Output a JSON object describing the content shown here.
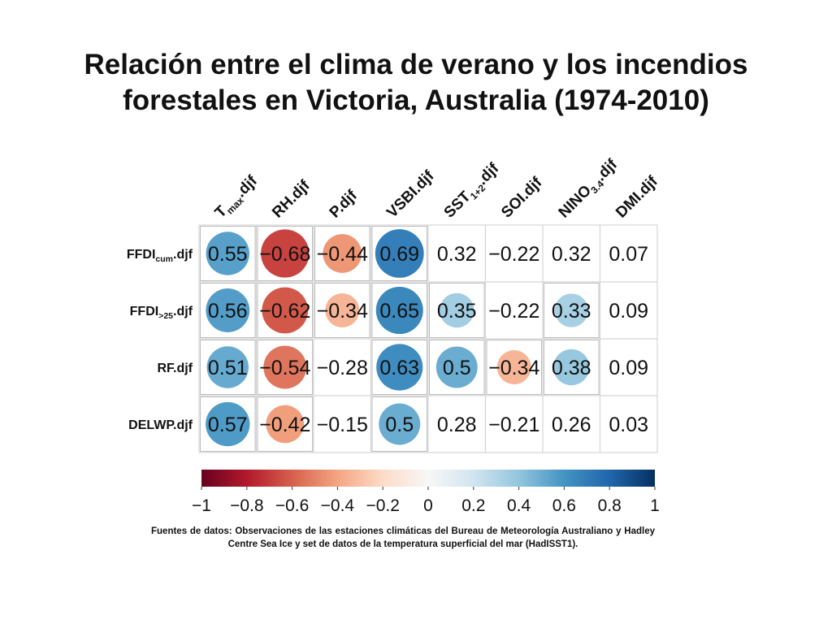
{
  "title_line1": "Relación entre el clima de verano y los incendios",
  "title_line2": "forestales en Victoria, Australia (1974-2010)",
  "footnote": "Fuentes de datos: Observaciones de las estaciones climáticas del Bureau de Meteorología Australiano y Hadley Centre Sea Ice y set de datos de la temperatura superficial del mar (HadISST1).",
  "chart_data": {
    "type": "heatmap",
    "columns": [
      {
        "label": "T",
        "sub": "max",
        "suffix": ".djf"
      },
      {
        "label": "RH.djf",
        "sub": "",
        "suffix": ""
      },
      {
        "label": "P.djf",
        "sub": "",
        "suffix": ""
      },
      {
        "label": "VSBI.djf",
        "sub": "",
        "suffix": ""
      },
      {
        "label": "SST",
        "sub": "1+2",
        "suffix": ".djf"
      },
      {
        "label": "SOI.djf",
        "sub": "",
        "suffix": ""
      },
      {
        "label": "NINO",
        "sub": "3.4",
        "suffix": ".djf"
      },
      {
        "label": "DMI.djf",
        "sub": "",
        "suffix": ""
      }
    ],
    "rows": [
      {
        "label": "FFDI",
        "sub": "cum",
        "suffix": ".djf"
      },
      {
        "label": "FFDI",
        "sub": ">25",
        "suffix": ".djf"
      },
      {
        "label": "RF.djf",
        "sub": "",
        "suffix": ""
      },
      {
        "label": "DELWP.djf",
        "sub": "",
        "suffix": ""
      }
    ],
    "values": [
      [
        0.55,
        -0.68,
        -0.44,
        0.69,
        0.32,
        -0.22,
        0.32,
        0.07
      ],
      [
        0.56,
        -0.62,
        -0.34,
        0.65,
        0.35,
        -0.22,
        0.33,
        0.09
      ],
      [
        0.51,
        -0.54,
        -0.28,
        0.63,
        0.5,
        -0.34,
        0.38,
        0.09
      ],
      [
        0.57,
        -0.42,
        -0.15,
        0.5,
        0.28,
        -0.21,
        0.26,
        0.03
      ]
    ],
    "value_labels": [
      [
        "0.55",
        "−0.68",
        "−0.44",
        "0.69",
        "0.32",
        "−0.22",
        "0.32",
        "0.07"
      ],
      [
        "0.56",
        "−0.62",
        "−0.34",
        "0.65",
        "0.35",
        "−0.22",
        "0.33",
        "0.09"
      ],
      [
        "0.51",
        "−0.54",
        "−0.28",
        "0.63",
        "0.5",
        "−0.34",
        "0.38",
        "0.09"
      ],
      [
        "0.57",
        "−0.42",
        "−0.15",
        "0.5",
        "0.28",
        "−0.21",
        "0.26",
        "0.03"
      ]
    ],
    "significant": [
      [
        true,
        true,
        true,
        true,
        false,
        false,
        false,
        false
      ],
      [
        true,
        true,
        true,
        true,
        true,
        false,
        true,
        false
      ],
      [
        true,
        true,
        false,
        true,
        true,
        true,
        true,
        false
      ],
      [
        true,
        true,
        false,
        true,
        false,
        false,
        false,
        false
      ]
    ],
    "colorbar": {
      "range": [
        -1,
        1
      ],
      "ticks": [
        -1,
        -0.8,
        -0.6,
        -0.4,
        -0.2,
        0,
        0.2,
        0.4,
        0.6,
        0.8,
        1
      ],
      "tick_labels": [
        "−1",
        "−0.8",
        "−0.6",
        "−0.4",
        "−0.2",
        "0",
        "0.2",
        "0.4",
        "0.6",
        "0.8",
        "1"
      ],
      "stops": [
        "#67001f",
        "#b2182b",
        "#d6604d",
        "#f4a582",
        "#fddbc7",
        "#f7f7f7",
        "#d1e5f0",
        "#92c5de",
        "#4393c3",
        "#2166ac",
        "#053061"
      ]
    }
  }
}
